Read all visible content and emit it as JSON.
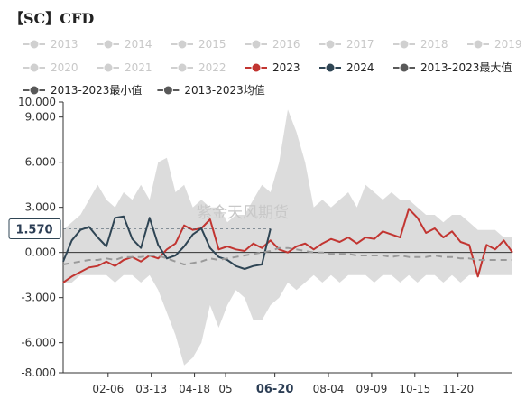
{
  "title": "【SC】CFD",
  "watermark": "紫金天风期货",
  "chart_data": {
    "type": "line",
    "title": "【SC】CFD",
    "xlabel": "",
    "ylabel": "",
    "ylim": [
      -8,
      10
    ],
    "y_ticks": [
      "10.000",
      "9.000",
      "6.000",
      "3.000",
      "0.000",
      "-3.000",
      "-6.000",
      "-8.000"
    ],
    "y_tick_values": [
      10,
      9,
      6,
      3,
      0,
      -3,
      -6,
      -8
    ],
    "x_ticks": [
      "02-06",
      "03-13",
      "04-18",
      "05",
      "06-20",
      "08-04",
      "09-09",
      "10-15",
      "11-20"
    ],
    "x_tick_positions": [
      5.2,
      10.2,
      15.2,
      18.8,
      24.5,
      30.7,
      35.7,
      40.7,
      45.7
    ],
    "highlight_x_tick": "06-20",
    "x_range": [
      0,
      52
    ],
    "current_value_label": "1.570",
    "current_value": 1.57,
    "legend_placement": "top",
    "grid": false,
    "legend": [
      {
        "name": "2013",
        "color": "#d0d0d0",
        "active": false
      },
      {
        "name": "2014",
        "color": "#d0d0d0",
        "active": false
      },
      {
        "name": "2015",
        "color": "#d0d0d0",
        "active": false
      },
      {
        "name": "2016",
        "color": "#d0d0d0",
        "active": false
      },
      {
        "name": "2017",
        "color": "#d0d0d0",
        "active": false
      },
      {
        "name": "2018",
        "color": "#d0d0d0",
        "active": false
      },
      {
        "name": "2019",
        "color": "#d0d0d0",
        "active": false
      },
      {
        "name": "2020",
        "color": "#d0d0d0",
        "active": false
      },
      {
        "name": "2021",
        "color": "#d0d0d0",
        "active": false
      },
      {
        "name": "2022",
        "color": "#d0d0d0",
        "active": false
      },
      {
        "name": "2023",
        "color": "#c23531",
        "active": true
      },
      {
        "name": "2024",
        "color": "#2f4554",
        "active": true
      },
      {
        "name": "2013-2023最大值",
        "color": "#595959",
        "active": true
      },
      {
        "name": "2013-2023最小值",
        "color": "#595959",
        "active": true
      },
      {
        "name": "2013-2023均值",
        "color": "#595959",
        "active": true
      }
    ],
    "range_band": {
      "name": "2013-2023 range",
      "color": "#dcdcdc",
      "x": [
        0,
        1,
        2,
        3,
        4,
        5,
        6,
        7,
        8,
        9,
        10,
        11,
        12,
        13,
        14,
        15,
        16,
        17,
        18,
        19,
        20,
        21,
        22,
        23,
        24,
        25,
        26,
        27,
        28,
        29,
        30,
        31,
        32,
        33,
        34,
        35,
        36,
        37,
        38,
        39,
        40,
        41,
        42,
        43,
        44,
        45,
        46,
        47,
        48,
        49,
        50,
        51,
        52
      ],
      "max": [
        1.5,
        2.0,
        2.5,
        3.5,
        4.5,
        3.5,
        3.0,
        4.0,
        3.5,
        4.5,
        3.5,
        6.0,
        6.3,
        4.0,
        4.5,
        3.0,
        3.5,
        3.0,
        3.0,
        2.0,
        2.5,
        2.5,
        3.5,
        4.5,
        4.0,
        6.0,
        9.5,
        8.0,
        6.0,
        3.0,
        3.5,
        3.0,
        3.5,
        4.0,
        3.0,
        4.5,
        4.0,
        3.5,
        4.0,
        3.5,
        3.5,
        3.0,
        2.5,
        2.5,
        2.0,
        2.5,
        2.5,
        2.0,
        1.5,
        1.5,
        1.5,
        1.0,
        1.0
      ],
      "min": [
        -2.0,
        -2.0,
        -1.5,
        -1.5,
        -1.5,
        -1.5,
        -2.0,
        -1.5,
        -1.5,
        -2.0,
        -1.5,
        -2.5,
        -4.0,
        -5.5,
        -7.5,
        -7.0,
        -6.0,
        -3.5,
        -5.0,
        -3.5,
        -2.5,
        -3.0,
        -4.5,
        -4.5,
        -3.5,
        -3.0,
        -2.0,
        -2.5,
        -2.0,
        -1.5,
        -2.0,
        -1.5,
        -2.0,
        -1.5,
        -1.5,
        -1.5,
        -2.0,
        -1.5,
        -1.5,
        -2.0,
        -1.5,
        -2.0,
        -1.5,
        -1.5,
        -2.0,
        -1.5,
        -2.0,
        -1.5,
        -1.5,
        -1.5,
        -1.5,
        -1.5,
        -1.5
      ]
    },
    "series": [
      {
        "name": "2023",
        "color": "#c23531",
        "x": [
          0,
          1,
          2,
          3,
          4,
          5,
          6,
          7,
          8,
          9,
          10,
          11,
          12,
          13,
          14,
          15,
          16,
          17,
          18,
          19,
          20,
          21,
          22,
          23,
          24,
          25,
          26,
          27,
          28,
          29,
          30,
          31,
          32,
          33,
          34,
          35,
          36,
          37,
          38,
          39,
          40,
          41,
          42,
          43,
          44,
          45,
          46,
          47,
          48,
          49,
          50,
          51,
          52
        ],
        "y": [
          -2.0,
          -1.6,
          -1.3,
          -1.0,
          -0.9,
          -0.6,
          -0.9,
          -0.5,
          -0.3,
          -0.6,
          -0.2,
          -0.4,
          0.2,
          0.6,
          1.8,
          1.5,
          1.6,
          2.2,
          0.2,
          0.4,
          0.2,
          0.1,
          0.6,
          0.3,
          0.8,
          0.2,
          0.0,
          0.4,
          0.6,
          0.2,
          0.6,
          0.9,
          0.7,
          1.0,
          0.6,
          1.0,
          0.9,
          1.4,
          1.2,
          1.0,
          2.9,
          2.3,
          1.3,
          1.6,
          1.0,
          1.4,
          0.7,
          0.5,
          -1.6,
          0.5,
          0.2,
          0.8,
          0.0
        ]
      },
      {
        "name": "2024",
        "color": "#2f4554",
        "x": [
          0,
          1,
          2,
          3,
          4,
          5,
          6,
          7,
          8,
          9,
          10,
          11,
          12,
          13,
          14,
          15,
          16,
          17,
          18,
          19,
          20,
          21,
          22,
          23,
          24
        ],
        "y": [
          -0.6,
          0.8,
          1.5,
          1.7,
          1.0,
          0.4,
          2.3,
          2.4,
          0.9,
          0.3,
          2.3,
          0.5,
          -0.4,
          -0.2,
          0.4,
          1.2,
          1.6,
          0.3,
          -0.3,
          -0.5,
          -0.9,
          -1.1,
          -0.9,
          -0.8,
          1.57
        ]
      },
      {
        "name": "2013-2023均值",
        "color": "#9a9a9a",
        "dashed": true,
        "x": [
          0,
          1,
          2,
          3,
          4,
          5,
          6,
          7,
          8,
          9,
          10,
          11,
          12,
          13,
          14,
          15,
          16,
          17,
          18,
          19,
          20,
          21,
          22,
          23,
          24,
          25,
          26,
          27,
          28,
          29,
          30,
          31,
          32,
          33,
          34,
          35,
          36,
          37,
          38,
          39,
          40,
          41,
          42,
          43,
          44,
          45,
          46,
          47,
          48,
          49,
          50,
          51,
          52
        ],
        "y": [
          -0.8,
          -0.7,
          -0.6,
          -0.5,
          -0.5,
          -0.4,
          -0.5,
          -0.3,
          -0.3,
          -0.3,
          -0.2,
          -0.2,
          -0.4,
          -0.6,
          -0.8,
          -0.7,
          -0.6,
          -0.4,
          -0.5,
          -0.4,
          -0.3,
          -0.2,
          -0.1,
          0.0,
          0.1,
          0.3,
          0.3,
          0.2,
          0.1,
          0.0,
          0.0,
          -0.1,
          -0.1,
          -0.1,
          -0.2,
          -0.2,
          -0.2,
          -0.2,
          -0.3,
          -0.2,
          -0.3,
          -0.3,
          -0.3,
          -0.2,
          -0.3,
          -0.3,
          -0.4,
          -0.4,
          -0.5,
          -0.5,
          -0.5,
          -0.5,
          -0.5
        ]
      }
    ]
  }
}
